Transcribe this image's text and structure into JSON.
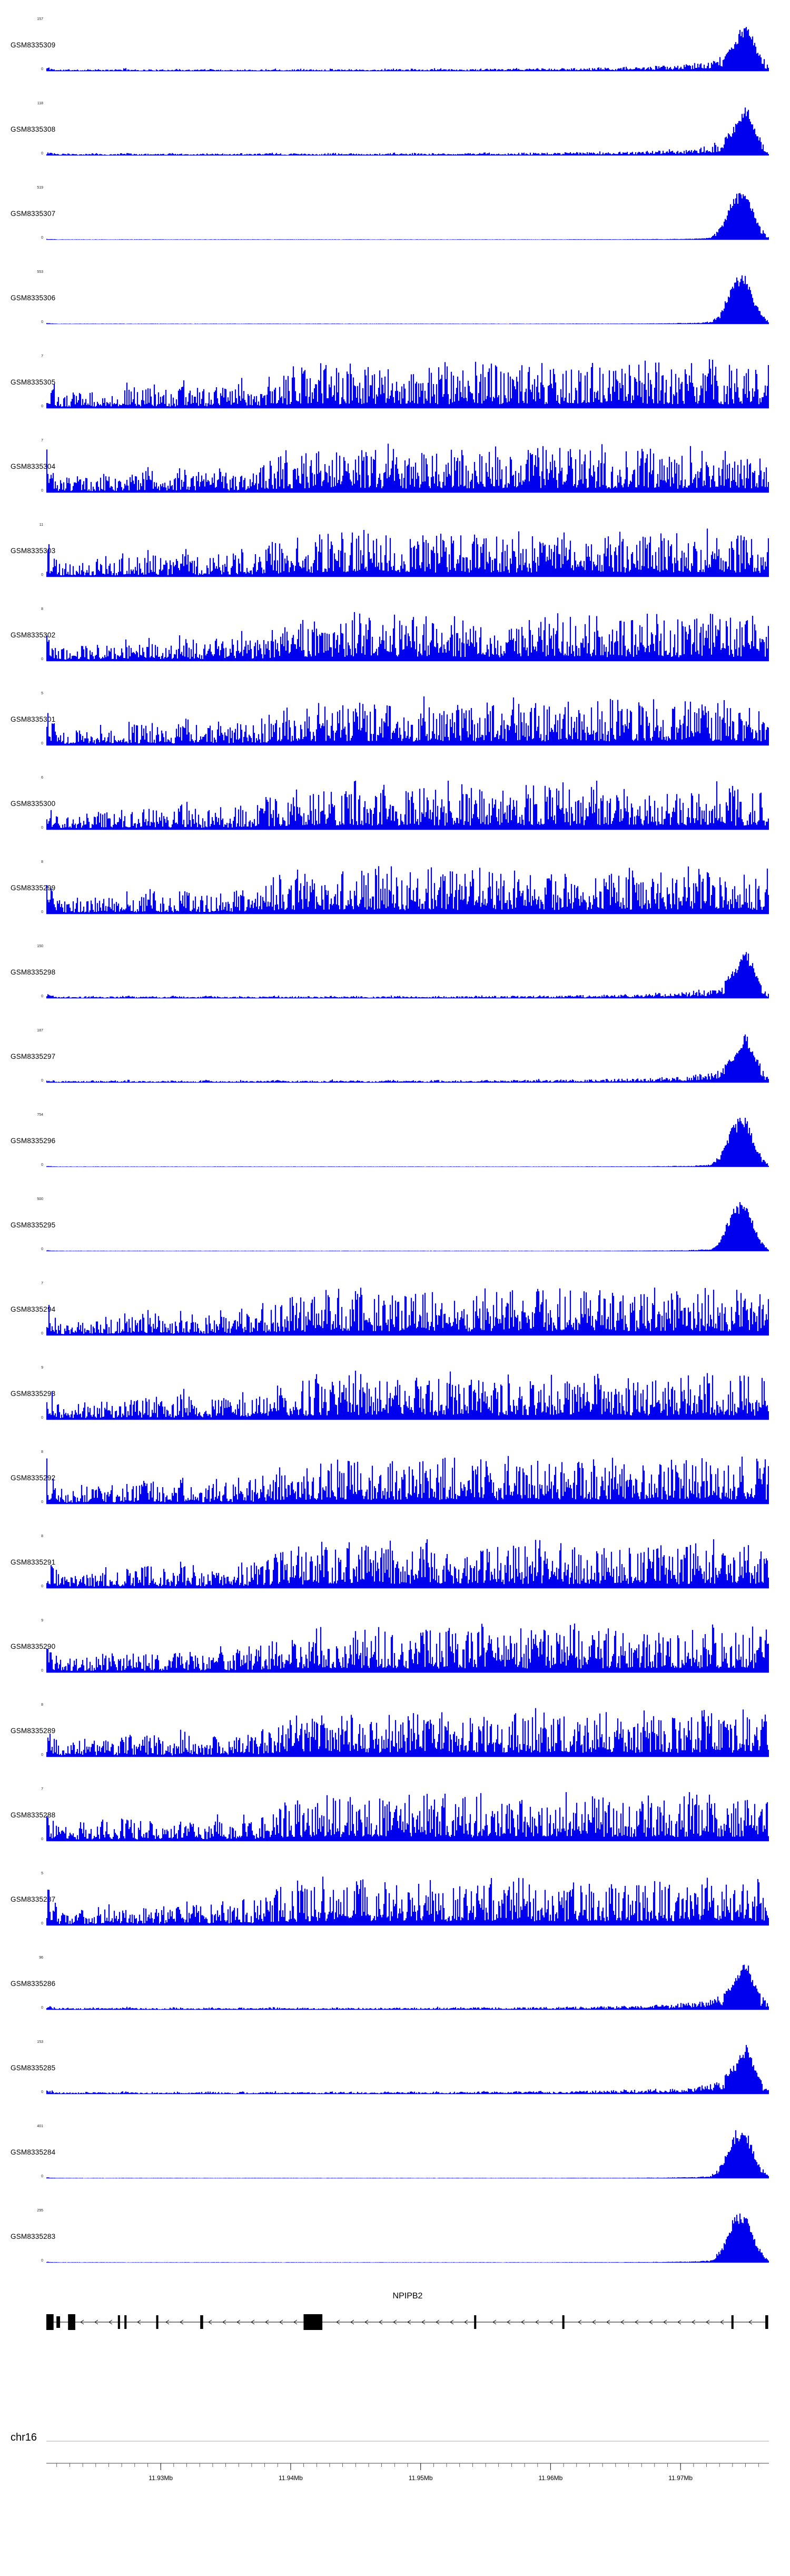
{
  "chart_data": {
    "type": "area",
    "title": "",
    "description": "Genome browser read-coverage tracks for 27 GEO samples over the NPIPB2 locus on chr16, with gene model and coordinate ruler",
    "signal_color": "#0000EE",
    "baseline_color": "#C8C8C8",
    "y_zero_label": "0",
    "tracks": [
      {
        "label": "GSM8335309",
        "ymax": 157,
        "profile": "peak_soft",
        "seed": 11
      },
      {
        "label": "GSM8335308",
        "ymax": 118,
        "profile": "peak_soft",
        "seed": 23
      },
      {
        "label": "GSM8335307",
        "ymax": 519,
        "profile": "peak_sharp",
        "seed": 37
      },
      {
        "label": "GSM8335306",
        "ymax": 553,
        "profile": "peak_sharp",
        "seed": 41
      },
      {
        "label": "GSM8335305",
        "ymax": 7,
        "profile": "broad",
        "seed": 53
      },
      {
        "label": "GSM8335304",
        "ymax": 7,
        "profile": "broad",
        "seed": 67
      },
      {
        "label": "GSM8335303",
        "ymax": 11,
        "profile": "broad",
        "seed": 79
      },
      {
        "label": "GSM8335302",
        "ymax": 8,
        "profile": "broad",
        "seed": 83
      },
      {
        "label": "GSM8335301",
        "ymax": 5,
        "profile": "broad",
        "seed": 97
      },
      {
        "label": "GSM8335300",
        "ymax": 6,
        "profile": "broad",
        "seed": 103
      },
      {
        "label": "GSM8335299",
        "ymax": 8,
        "profile": "broad",
        "seed": 113
      },
      {
        "label": "GSM8335298",
        "ymax": 150,
        "profile": "peak_soft",
        "seed": 127
      },
      {
        "label": "GSM8335297",
        "ymax": 187,
        "profile": "peak_soft",
        "seed": 131
      },
      {
        "label": "GSM8335296",
        "ymax": 754,
        "profile": "peak_sharp",
        "seed": 139
      },
      {
        "label": "GSM8335295",
        "ymax": 500,
        "profile": "peak_sharp",
        "seed": 149
      },
      {
        "label": "GSM8335294",
        "ymax": 7,
        "profile": "broad",
        "seed": 151
      },
      {
        "label": "GSM8335293",
        "ymax": 9,
        "profile": "broad",
        "seed": 163
      },
      {
        "label": "GSM8335292",
        "ymax": 8,
        "profile": "broad",
        "seed": 167
      },
      {
        "label": "GSM8335291",
        "ymax": 8,
        "profile": "broad",
        "seed": 173
      },
      {
        "label": "GSM8335290",
        "ymax": 9,
        "profile": "broad",
        "seed": 179
      },
      {
        "label": "GSM8335289",
        "ymax": 8,
        "profile": "broad",
        "seed": 191
      },
      {
        "label": "GSM8335288",
        "ymax": 7,
        "profile": "broad",
        "seed": 193
      },
      {
        "label": "GSM8335287",
        "ymax": 5,
        "profile": "broad",
        "seed": 197
      },
      {
        "label": "GSM8335286",
        "ymax": 96,
        "profile": "peak_soft",
        "seed": 211
      },
      {
        "label": "GSM8335285",
        "ymax": 153,
        "profile": "peak_soft",
        "seed": 223
      },
      {
        "label": "GSM8335284",
        "ymax": 401,
        "profile": "peak_sharp",
        "seed": 227
      },
      {
        "label": "GSM8335283",
        "ymax": 295,
        "profile": "peak_sharp",
        "seed": 233
      }
    ],
    "profiles": {
      "broad": {
        "noise_base": 0.1,
        "noise_exp": 1.7,
        "envelope": [
          0.95,
          0.3,
          0.28,
          0.38,
          0.3,
          0.45,
          0.32,
          0.5,
          0.36,
          0.55,
          0.4,
          0.34,
          0.6,
          0.42,
          0.36,
          0.52,
          0.4,
          0.58,
          0.46,
          0.62,
          0.72,
          0.82,
          0.88,
          0.78,
          0.95,
          0.85,
          0.9,
          1.0,
          0.84,
          0.92,
          0.96,
          0.8,
          0.9,
          1.0,
          0.86,
          0.94,
          0.88,
          0.8,
          1.0,
          0.9,
          0.84,
          0.96,
          0.9,
          1.0,
          0.86,
          0.92,
          0.96,
          0.84,
          1.0,
          0.9,
          0.94,
          0.86,
          0.9,
          1.0,
          0.9,
          0.86,
          0.96,
          0.9,
          1.0,
          0.86,
          0.94,
          0.9,
          0.86,
          0.95
        ]
      },
      "peak_soft": {
        "noise_base": 0.25,
        "noise_exp": 1.2,
        "solid_above": 0.35,
        "envelope": [
          0.1,
          0.03,
          0.04,
          0.03,
          0.05,
          0.03,
          0.04,
          0.06,
          0.03,
          0.04,
          0.03,
          0.05,
          0.04,
          0.03,
          0.06,
          0.04,
          0.03,
          0.05,
          0.03,
          0.04,
          0.06,
          0.03,
          0.05,
          0.04,
          0.03,
          0.06,
          0.04,
          0.05,
          0.03,
          0.04,
          0.06,
          0.04,
          0.05,
          0.03,
          0.06,
          0.04,
          0.05,
          0.04,
          0.06,
          0.05,
          0.04,
          0.06,
          0.05,
          0.07,
          0.05,
          0.06,
          0.07,
          0.06,
          0.08,
          0.07,
          0.08,
          0.09,
          0.08,
          0.1,
          0.11,
          0.12,
          0.14,
          0.17,
          0.22,
          0.3,
          0.55,
          1.0,
          0.45,
          0.1
        ]
      },
      "peak_sharp": {
        "noise_base": 0.5,
        "noise_exp": 1.0,
        "solid_above": 0.25,
        "envelope": [
          0.02,
          0.008,
          0.008,
          0.008,
          0.008,
          0.008,
          0.008,
          0.008,
          0.008,
          0.008,
          0.008,
          0.008,
          0.008,
          0.008,
          0.008,
          0.008,
          0.008,
          0.008,
          0.008,
          0.008,
          0.008,
          0.008,
          0.008,
          0.008,
          0.008,
          0.008,
          0.008,
          0.008,
          0.008,
          0.008,
          0.008,
          0.008,
          0.008,
          0.008,
          0.008,
          0.008,
          0.008,
          0.008,
          0.008,
          0.008,
          0.008,
          0.008,
          0.008,
          0.008,
          0.008,
          0.008,
          0.01,
          0.01,
          0.01,
          0.01,
          0.01,
          0.012,
          0.012,
          0.015,
          0.015,
          0.02,
          0.02,
          0.03,
          0.05,
          0.3,
          0.9,
          1.0,
          0.35,
          0.05
        ]
      }
    },
    "gene": {
      "name": "NPIPB2",
      "strand": "-",
      "exons": [
        {
          "x": 0.0,
          "w": 0.01,
          "h": 30
        },
        {
          "x": 0.014,
          "w": 0.005,
          "h": 22
        },
        {
          "x": 0.03,
          "w": 0.01,
          "h": 30
        },
        {
          "x": 0.099,
          "w": 0.003,
          "h": 26
        },
        {
          "x": 0.108,
          "w": 0.003,
          "h": 26
        },
        {
          "x": 0.152,
          "w": 0.003,
          "h": 26
        },
        {
          "x": 0.213,
          "w": 0.004,
          "h": 26
        },
        {
          "x": 0.356,
          "w": 0.026,
          "h": 30
        },
        {
          "x": 0.592,
          "w": 0.003,
          "h": 26
        },
        {
          "x": 0.714,
          "w": 0.003,
          "h": 26
        },
        {
          "x": 0.948,
          "w": 0.003,
          "h": 26
        },
        {
          "x": 0.995,
          "w": 0.004,
          "h": 26
        }
      ]
    },
    "axis": {
      "chromosome": "chr16",
      "start_mb": 11.9212,
      "end_mb": 11.9768,
      "minor_step_mb": 0.001,
      "major_ticks": [
        {
          "mb": 11.93,
          "label": "11.93Mb"
        },
        {
          "mb": 11.94,
          "label": "11.94Mb"
        },
        {
          "mb": 11.95,
          "label": "11.95Mb"
        },
        {
          "mb": 11.96,
          "label": "11.96Mb"
        },
        {
          "mb": 11.97,
          "label": "11.97Mb"
        }
      ]
    }
  }
}
